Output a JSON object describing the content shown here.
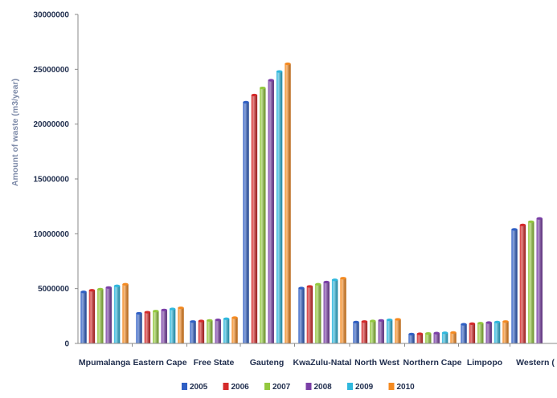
{
  "chart_data": {
    "type": "bar",
    "ylabel": "Amount of waste (m3/year)",
    "ylim": [
      0,
      30000000
    ],
    "yticks": [
      "0",
      "5000000",
      "10000000",
      "15000000",
      "20000000",
      "25000000",
      "30000000"
    ],
    "categories": [
      "Mpumalanga",
      "Eastern Cape",
      "Free State",
      "Gauteng",
      "KwaZulu-Natal",
      "North West",
      "Northern Cape",
      "Limpopo",
      "Western Cape"
    ],
    "category_labels_shown": [
      "Mpumalanga",
      "Eastern Cape",
      "Free State",
      "Gauteng",
      "KwaZulu-Natal",
      "North West",
      "Northern Cape",
      "Limpopo",
      "Western ("
    ],
    "grid": false,
    "legend": "bottom",
    "series": [
      {
        "name": "2005",
        "color": "#2f5fc4",
        "values": [
          4700000,
          2750000,
          2000000,
          22000000,
          5050000,
          1950000,
          850000,
          1750000,
          10400000
        ]
      },
      {
        "name": "2006",
        "color": "#d42a2a",
        "values": [
          4850000,
          2850000,
          2050000,
          22650000,
          5200000,
          2000000,
          880000,
          1800000,
          10800000
        ]
      },
      {
        "name": "2007",
        "color": "#93c83e",
        "values": [
          4950000,
          2950000,
          2100000,
          23300000,
          5400000,
          2050000,
          910000,
          1850000,
          11100000
        ]
      },
      {
        "name": "2008",
        "color": "#7a3fa6",
        "values": [
          5100000,
          3050000,
          2150000,
          24000000,
          5600000,
          2100000,
          940000,
          1900000,
          11400000
        ]
      },
      {
        "name": "2009",
        "color": "#30b8dd",
        "values": [
          5250000,
          3150000,
          2250000,
          24800000,
          5800000,
          2150000,
          970000,
          1950000,
          null
        ]
      },
      {
        "name": "2010",
        "color": "#f48a21",
        "values": [
          5400000,
          3250000,
          2350000,
          25500000,
          5950000,
          2200000,
          1000000,
          2000000,
          null
        ]
      }
    ]
  }
}
